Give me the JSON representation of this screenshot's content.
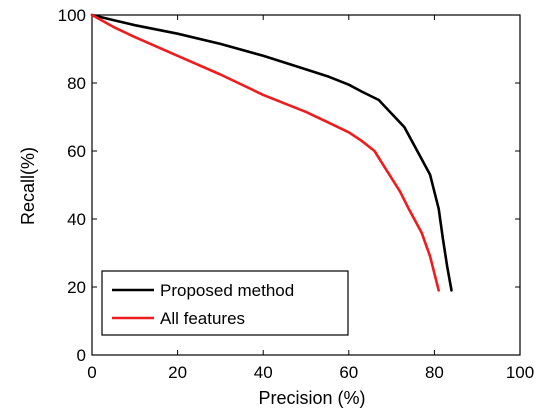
{
  "chart_data": {
    "type": "line",
    "title": "",
    "xlabel": "Precision (%)",
    "ylabel": "Recall(%)",
    "xlim": [
      0,
      100
    ],
    "ylim": [
      0,
      100
    ],
    "xticks": [
      "0",
      "20",
      "40",
      "60",
      "80",
      "100"
    ],
    "yticks": [
      "0",
      "20",
      "40",
      "60",
      "80",
      "100"
    ],
    "grid": false,
    "legend_position": "bottom-left",
    "series": [
      {
        "name": "Proposed method",
        "color": "#000000",
        "points": [
          [
            0,
            100
          ],
          [
            5,
            98.5
          ],
          [
            10,
            97
          ],
          [
            20,
            94.5
          ],
          [
            30,
            91.5
          ],
          [
            40,
            88
          ],
          [
            50,
            84
          ],
          [
            55,
            82
          ],
          [
            60,
            79.5
          ],
          [
            63,
            77.5
          ],
          [
            67,
            75
          ],
          [
            70,
            71
          ],
          [
            73,
            67
          ],
          [
            76,
            60
          ],
          [
            79,
            53
          ],
          [
            81,
            43
          ],
          [
            82,
            34
          ],
          [
            83,
            26
          ],
          [
            84,
            19
          ]
        ]
      },
      {
        "name": "All features",
        "color": "#ee1c1c",
        "points": [
          [
            0,
            100
          ],
          [
            5,
            96.5
          ],
          [
            10,
            93.5
          ],
          [
            20,
            88
          ],
          [
            30,
            82.5
          ],
          [
            40,
            76.5
          ],
          [
            50,
            71.5
          ],
          [
            55,
            68.5
          ],
          [
            60,
            65.5
          ],
          [
            63,
            63
          ],
          [
            66,
            60
          ],
          [
            68,
            56
          ],
          [
            70,
            52
          ],
          [
            72,
            48
          ],
          [
            74,
            43
          ],
          [
            77,
            36
          ],
          [
            79,
            29
          ],
          [
            81,
            19
          ]
        ]
      }
    ]
  }
}
